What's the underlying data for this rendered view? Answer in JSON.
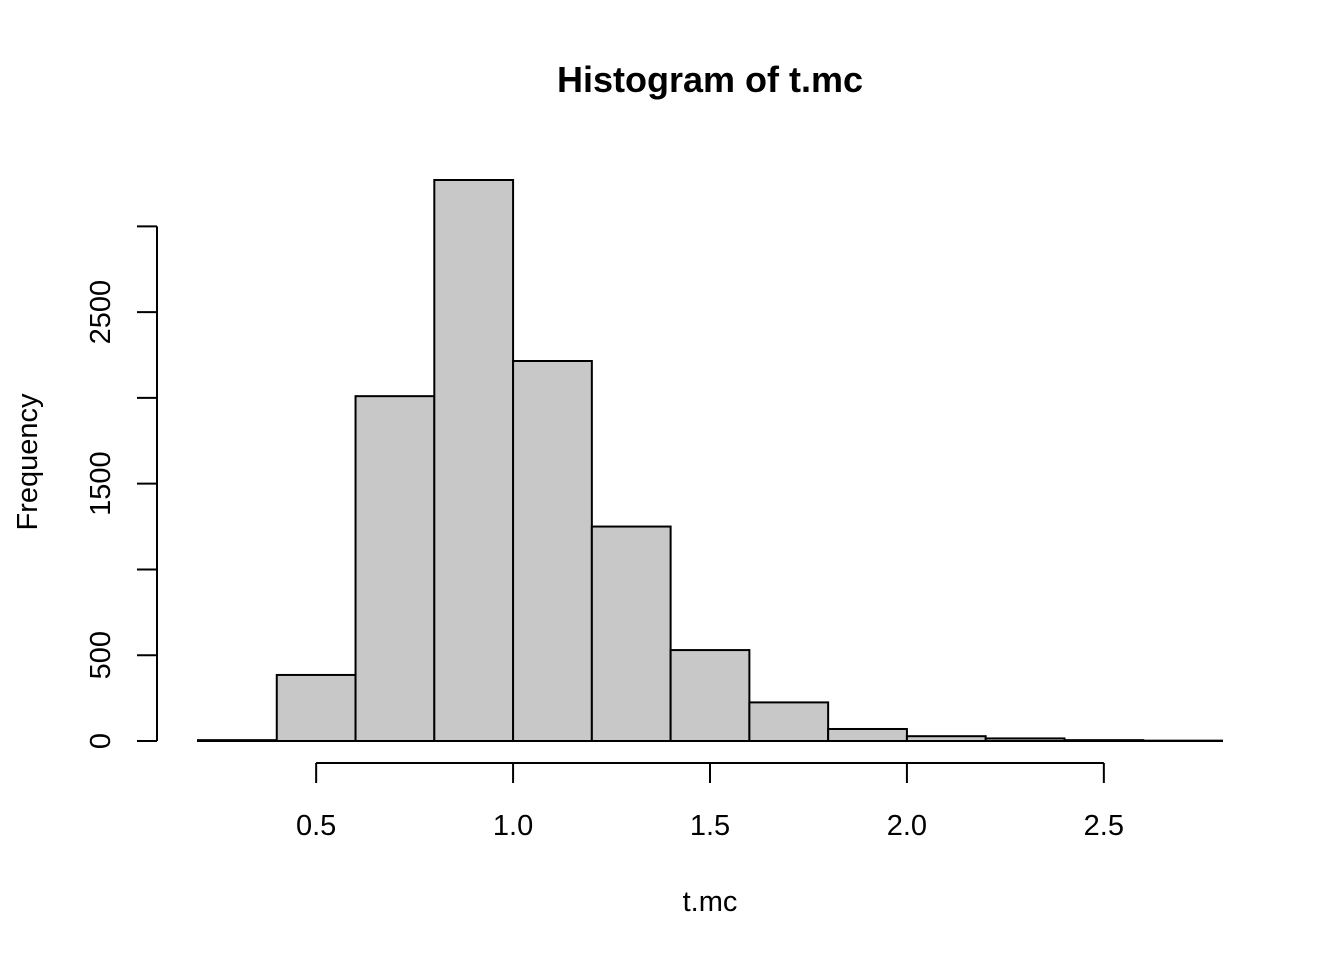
{
  "chart_data": {
    "type": "bar",
    "title": "Histogram of t.mc",
    "xlabel": "t.mc",
    "ylabel": "Frequency",
    "bar_color": "#c8c8c8",
    "edge_color": "#000000",
    "bin_edges": [
      0.2,
      0.4,
      0.6,
      0.8,
      1.0,
      1.2,
      1.4,
      1.6,
      1.8,
      2.0,
      2.2,
      2.4,
      2.6,
      2.8
    ],
    "values": [
      5,
      385,
      2010,
      3270,
      2215,
      1250,
      530,
      225,
      70,
      28,
      15,
      5,
      2
    ],
    "xlim": [
      0.2,
      2.8
    ],
    "ylim": [
      0,
      3270
    ],
    "x_ticks": [
      0.5,
      1.0,
      1.5,
      2.0,
      2.5
    ],
    "x_tick_labels": [
      "0.5",
      "1.0",
      "1.5",
      "2.0",
      "2.5"
    ],
    "y_ticks": [
      0,
      500,
      1000,
      1500,
      2000,
      2500,
      3000
    ],
    "y_tick_labels": [
      "0",
      "500",
      "",
      "1500",
      "",
      "2500",
      ""
    ]
  }
}
